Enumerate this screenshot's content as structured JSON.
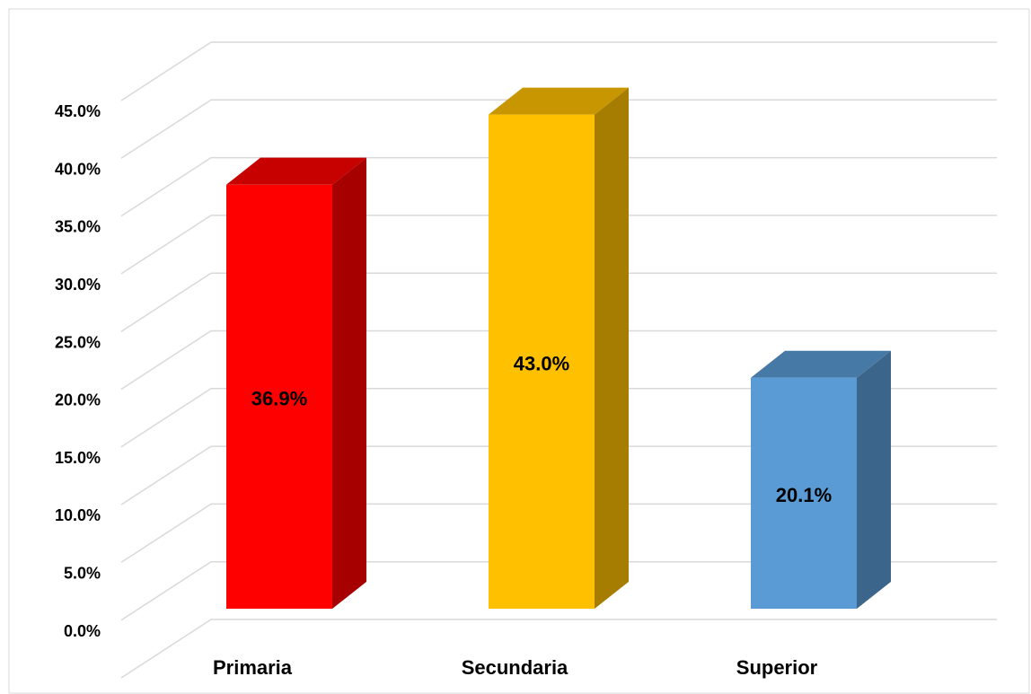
{
  "chart_data": {
    "type": "bar3d",
    "categories": [
      "Primaria",
      "Secundaria",
      "Superior"
    ],
    "values": [
      36.9,
      43.0,
      20.1
    ],
    "value_labels": [
      "36.9%",
      "43.0%",
      "20.1%"
    ],
    "colors": [
      "#ff0000",
      "#ffc000",
      "#5b9bd5"
    ],
    "ylim": [
      0,
      50
    ],
    "yticks": [
      {
        "value": 0,
        "label": "0.0%"
      },
      {
        "value": 5,
        "label": "5.0%"
      },
      {
        "value": 10,
        "label": "10.0%"
      },
      {
        "value": 15,
        "label": "15.0%"
      },
      {
        "value": 20,
        "label": "20.0%"
      },
      {
        "value": 25,
        "label": "25.0%"
      },
      {
        "value": 30,
        "label": "30.0%"
      },
      {
        "value": 35,
        "label": "35.0%"
      },
      {
        "value": 40,
        "label": "40.0%"
      },
      {
        "value": 45,
        "label": "45.0%"
      }
    ],
    "grid": true
  }
}
